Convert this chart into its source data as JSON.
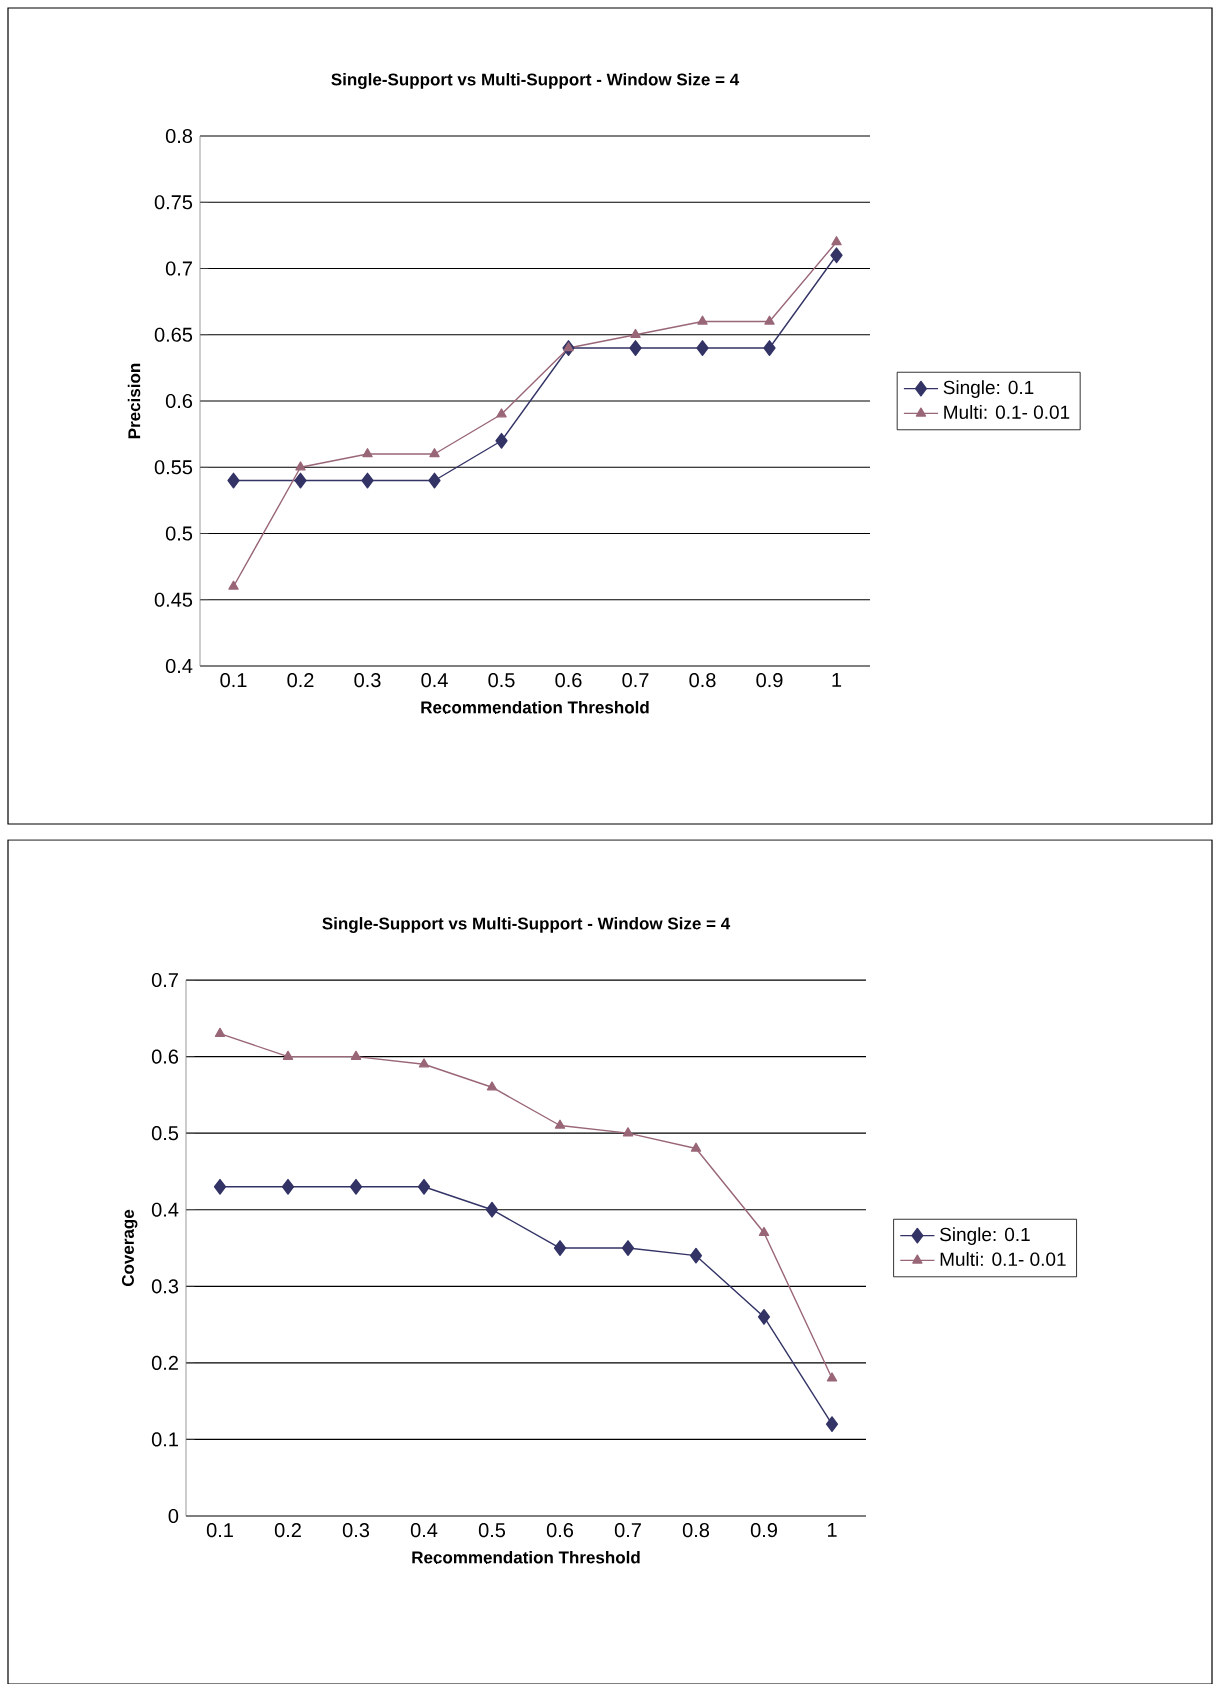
{
  "chart_data": [
    {
      "type": "line",
      "title": "Single-Support vs Multi-Support - Window Size = 4",
      "xlabel": "Recommendation Threshold",
      "ylabel": "Precision",
      "categories": [
        "0.1",
        "0.2",
        "0.3",
        "0.4",
        "0.5",
        "0.6",
        "0.7",
        "0.8",
        "0.9",
        "1"
      ],
      "series": [
        {
          "name": "Single: 0.1",
          "color": "#333366",
          "marker": "diamond",
          "values": [
            0.54,
            0.54,
            0.54,
            0.54,
            0.57,
            0.64,
            0.64,
            0.64,
            0.64,
            0.71
          ]
        },
        {
          "name": "Multi: 0.1- 0.01",
          "color": "#996677",
          "marker": "triangle",
          "values": [
            0.46,
            0.55,
            0.56,
            0.56,
            0.59,
            0.64,
            0.65,
            0.66,
            0.66,
            0.72
          ]
        }
      ],
      "ylim": [
        0.4,
        0.8
      ],
      "yticks": [
        0.4,
        0.45,
        0.5,
        0.55,
        0.6,
        0.65,
        0.7,
        0.75,
        0.8
      ],
      "grid": "y",
      "legend": "right"
    },
    {
      "type": "line",
      "title": "Single-Support vs Multi-Support - Window Size = 4",
      "xlabel": "Recommendation Threshold",
      "ylabel": "Coverage",
      "categories": [
        "0.1",
        "0.2",
        "0.3",
        "0.4",
        "0.5",
        "0.6",
        "0.7",
        "0.8",
        "0.9",
        "1"
      ],
      "series": [
        {
          "name": "Single: 0.1",
          "color": "#333366",
          "marker": "diamond",
          "values": [
            0.43,
            0.43,
            0.43,
            0.43,
            0.4,
            0.35,
            0.35,
            0.34,
            0.26,
            0.12
          ]
        },
        {
          "name": "Multi: 0.1- 0.01",
          "color": "#996677",
          "marker": "triangle",
          "values": [
            0.63,
            0.6,
            0.6,
            0.59,
            0.56,
            0.51,
            0.5,
            0.48,
            0.37,
            0.18
          ]
        }
      ],
      "ylim": [
        0,
        0.7
      ],
      "yticks": [
        0,
        0.1,
        0.2,
        0.3,
        0.4,
        0.5,
        0.6,
        0.7
      ],
      "grid": "y",
      "legend": "right"
    }
  ]
}
